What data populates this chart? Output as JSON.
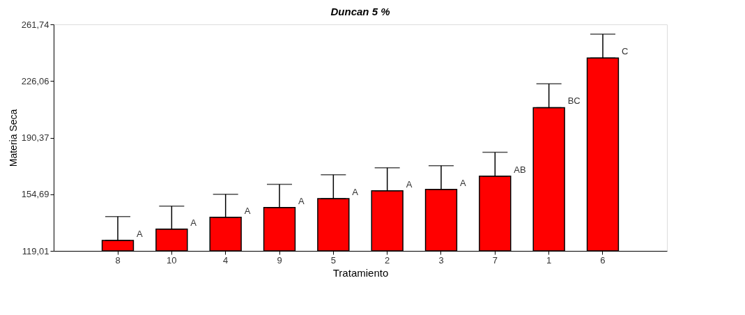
{
  "chart_data": {
    "type": "bar",
    "title": "Duncan 5 %",
    "xlabel": "Tratamiento",
    "ylabel": "Materia Seca",
    "categories": [
      "8",
      "10",
      "4",
      "9",
      "5",
      "2",
      "3",
      "7",
      "1",
      "6"
    ],
    "values": [
      125.6,
      132.7,
      140.2,
      146.3,
      152.0,
      156.9,
      157.8,
      166.1,
      209.3,
      240.6
    ],
    "errors": [
      [
        125.6,
        140.6
      ],
      [
        132.7,
        147.2
      ],
      [
        140.2,
        154.7
      ],
      [
        146.3,
        160.9
      ],
      [
        152.0,
        167.0
      ],
      [
        156.9,
        171.4
      ],
      [
        157.8,
        172.7
      ],
      [
        166.1,
        181.1
      ],
      [
        209.3,
        224.3
      ],
      [
        240.6,
        255.6
      ]
    ],
    "color": "#ff0000",
    "ylim": [
      119.01,
      261.74
    ],
    "yticks": [
      {
        "value": 119.01,
        "label": "119,01"
      },
      {
        "value": 154.69,
        "label": "154,69"
      },
      {
        "value": 190.37,
        "label": "190,37"
      },
      {
        "value": 226.06,
        "label": "226,06"
      },
      {
        "value": 261.74,
        "label": "261,74"
      }
    ],
    "grid": false,
    "annotations": [
      {
        "text": "A",
        "x": "8",
        "y": 125.6
      },
      {
        "text": "A",
        "x": "10",
        "y": 132.7
      },
      {
        "text": "A",
        "x": "4",
        "y": 140.2
      },
      {
        "text": "A",
        "x": "9",
        "y": 146.3
      },
      {
        "text": "A",
        "x": "5",
        "y": 152.0
      },
      {
        "text": "A",
        "x": "2",
        "y": 156.9
      },
      {
        "text": "A",
        "x": "3",
        "y": 157.8
      },
      {
        "text": "AB",
        "x": "7",
        "y": 166.1
      },
      {
        "text": "BC",
        "x": "1",
        "y": 209.3
      },
      {
        "text": "C",
        "x": "6",
        "y": 240.6
      }
    ]
  }
}
